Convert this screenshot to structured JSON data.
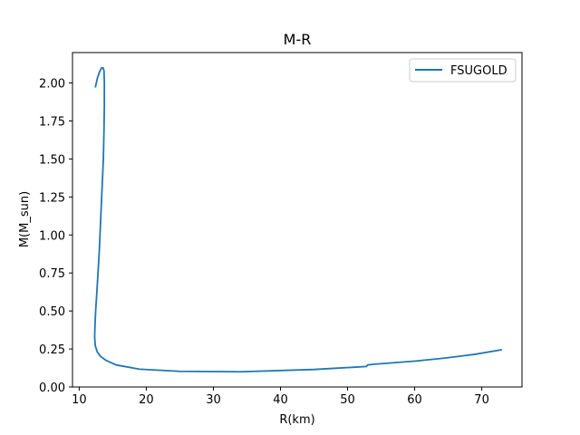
{
  "chart_data": {
    "type": "line",
    "title": "M-R",
    "xlabel": "R(km)",
    "ylabel": "M(M_sun)",
    "xlim": [
      9.0,
      76.0
    ],
    "ylim": [
      0.0,
      2.2
    ],
    "xticks": [
      10,
      20,
      30,
      40,
      50,
      60,
      70
    ],
    "xtick_labels": [
      "10",
      "20",
      "30",
      "40",
      "50",
      "60",
      "70"
    ],
    "yticks": [
      0.0,
      0.25,
      0.5,
      0.75,
      1.0,
      1.25,
      1.5,
      1.75,
      2.0
    ],
    "ytick_labels": [
      "0.00",
      "0.25",
      "0.50",
      "0.75",
      "1.00",
      "1.25",
      "1.50",
      "1.75",
      "2.00"
    ],
    "grid": false,
    "legend_position": "top-right",
    "series": [
      {
        "name": "FSUGOLD",
        "color": "#1f77b4",
        "x": [
          12.4,
          12.7,
          13.0,
          13.35,
          13.55,
          13.7,
          13.75,
          13.75,
          13.7,
          13.6,
          13.4,
          13.2,
          13.0,
          12.8,
          12.6,
          12.45,
          12.35,
          12.3,
          12.4,
          12.7,
          13.2,
          14.0,
          15.5,
          19.0,
          25.0,
          34.0,
          45.0,
          51.0,
          52.8,
          53.0,
          54.0,
          60.0,
          64.5,
          69.0,
          73.0
        ],
        "y": [
          1.97,
          2.03,
          2.07,
          2.1,
          2.1,
          2.08,
          2.0,
          1.85,
          1.7,
          1.5,
          1.3,
          1.1,
          0.9,
          0.75,
          0.6,
          0.5,
          0.4,
          0.33,
          0.27,
          0.23,
          0.2,
          0.175,
          0.145,
          0.117,
          0.103,
          0.1,
          0.115,
          0.13,
          0.135,
          0.145,
          0.15,
          0.17,
          0.19,
          0.215,
          0.245
        ]
      }
    ]
  }
}
